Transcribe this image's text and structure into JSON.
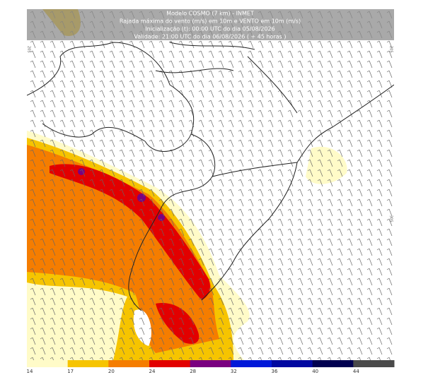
{
  "header": {
    "lines": [
      "Modelo COSMO (7 km) - INMET",
      "Rajada máxima do vento (m/s) em 10m e VENTO em 10m (m/s)",
      "Inicialização (t): 00:00 UTC do dia 05/08/2026",
      "Validade: 21:00 UTC do dia 06/08/2026 ( + 45 horas )"
    ]
  },
  "axis_labels": {
    "left": "20S",
    "right_top": "20S",
    "right_mid": "30S"
  },
  "legend": {
    "levels": [
      14,
      17,
      20,
      24,
      28,
      32,
      36,
      40,
      44
    ],
    "colors": [
      "#fffbc8",
      "#f6c400",
      "#f57d00",
      "#e20000",
      "#7a0080",
      "#0018d8",
      "#0008a0",
      "#000050",
      "#4a4a4a"
    ]
  }
}
